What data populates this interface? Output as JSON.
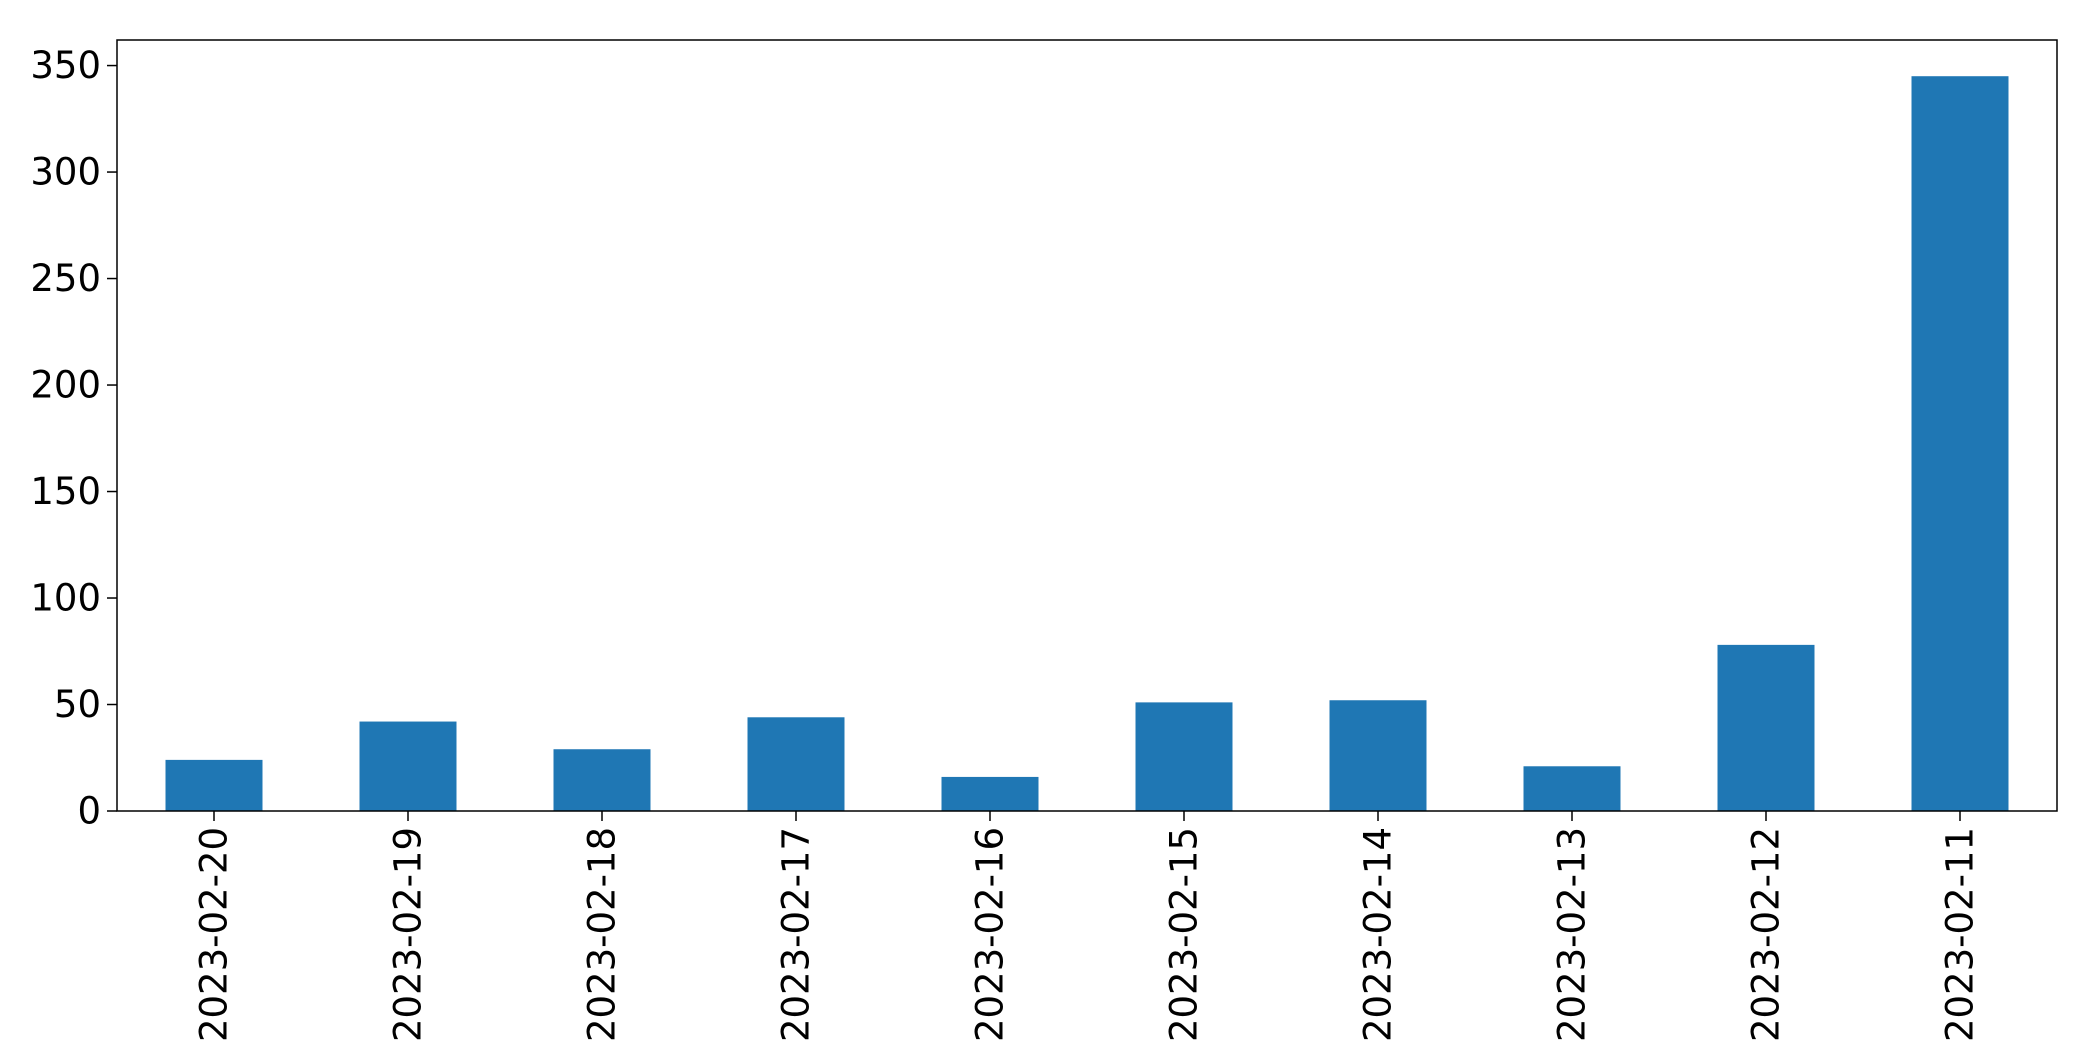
{
  "chart_data": {
    "type": "bar",
    "title": "",
    "xlabel": "",
    "ylabel": "",
    "categories": [
      "2023-02-20",
      "2023-02-19",
      "2023-02-18",
      "2023-02-17",
      "2023-02-16",
      "2023-02-15",
      "2023-02-14",
      "2023-02-13",
      "2023-02-12",
      "2023-02-11"
    ],
    "values": [
      24,
      42,
      29,
      44,
      16,
      51,
      52,
      21,
      78,
      345
    ],
    "ylim": [
      0,
      362
    ],
    "yticks": [
      0,
      50,
      100,
      150,
      200,
      250,
      300,
      350
    ],
    "grid": false,
    "legend": "none",
    "bar_color": "#1f77b4"
  }
}
